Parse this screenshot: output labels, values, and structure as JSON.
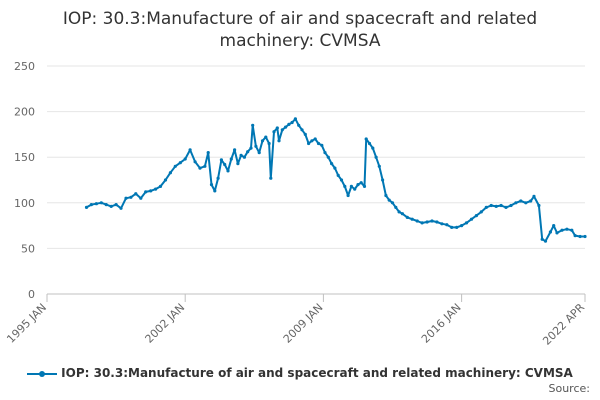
{
  "title_lines": [
    "IOP: 30.3:Manufacture of air and spacecraft and related",
    "machinery: CVMSA"
  ],
  "source_label": "Source:",
  "colors": {
    "series": "#0077b4",
    "grid": "#e6e6e6",
    "axis_text": "#666666"
  },
  "chart_data": {
    "type": "line",
    "title": "IOP: 30.3:Manufacture of air and spacecraft and related machinery: CVMSA",
    "xlabel": "",
    "ylabel": "",
    "x_range": [
      "1995-01",
      "2022-04"
    ],
    "ylim": [
      0,
      250
    ],
    "y_ticks": [
      0,
      50,
      100,
      150,
      200,
      250
    ],
    "x_ticks": [
      {
        "label": "1995 JAN",
        "date": "1995-01"
      },
      {
        "label": "2002 JAN",
        "date": "2002-01"
      },
      {
        "label": "2009 JAN",
        "date": "2009-01"
      },
      {
        "label": "2016 JAN",
        "date": "2016-01"
      },
      {
        "label": "2022 APR",
        "date": "2022-04"
      }
    ],
    "grid": true,
    "legend_position": "bottom",
    "series": [
      {
        "name": "IOP: 30.3:Manufacture of air and spacecraft and related machinery: CVMSA",
        "points": [
          [
            "1997-01",
            95
          ],
          [
            "1997-04",
            98
          ],
          [
            "1997-07",
            99
          ],
          [
            "1997-10",
            100
          ],
          [
            "1998-01",
            98
          ],
          [
            "1998-04",
            96
          ],
          [
            "1998-07",
            98
          ],
          [
            "1998-10",
            94
          ],
          [
            "1999-01",
            105
          ],
          [
            "1999-04",
            106
          ],
          [
            "1999-07",
            110
          ],
          [
            "1999-10",
            105
          ],
          [
            "2000-01",
            112
          ],
          [
            "2000-04",
            113
          ],
          [
            "2000-07",
            115
          ],
          [
            "2000-10",
            118
          ],
          [
            "2001-01",
            125
          ],
          [
            "2001-04",
            133
          ],
          [
            "2001-07",
            140
          ],
          [
            "2001-10",
            144
          ],
          [
            "2002-01",
            148
          ],
          [
            "2002-04",
            158
          ],
          [
            "2002-07",
            145
          ],
          [
            "2002-10",
            138
          ],
          [
            "2003-01",
            140
          ],
          [
            "2003-03",
            155
          ],
          [
            "2003-05",
            120
          ],
          [
            "2003-07",
            113
          ],
          [
            "2003-09",
            127
          ],
          [
            "2003-11",
            147
          ],
          [
            "2004-01",
            142
          ],
          [
            "2004-03",
            135
          ],
          [
            "2004-05",
            148
          ],
          [
            "2004-07",
            158
          ],
          [
            "2004-09",
            143
          ],
          [
            "2004-11",
            152
          ],
          [
            "2005-01",
            150
          ],
          [
            "2005-03",
            156
          ],
          [
            "2005-05",
            160
          ],
          [
            "2005-06",
            185
          ],
          [
            "2005-08",
            162
          ],
          [
            "2005-10",
            155
          ],
          [
            "2005-12",
            168
          ],
          [
            "2006-02",
            172
          ],
          [
            "2006-04",
            165
          ],
          [
            "2006-05",
            127
          ],
          [
            "2006-07",
            178
          ],
          [
            "2006-09",
            182
          ],
          [
            "2006-10",
            168
          ],
          [
            "2006-12",
            180
          ],
          [
            "2007-02",
            183
          ],
          [
            "2007-04",
            186
          ],
          [
            "2007-06",
            188
          ],
          [
            "2007-08",
            192
          ],
          [
            "2007-10",
            185
          ],
          [
            "2007-12",
            180
          ],
          [
            "2008-02",
            175
          ],
          [
            "2008-04",
            165
          ],
          [
            "2008-06",
            168
          ],
          [
            "2008-08",
            170
          ],
          [
            "2008-10",
            165
          ],
          [
            "2008-12",
            163
          ],
          [
            "2009-02",
            155
          ],
          [
            "2009-04",
            150
          ],
          [
            "2009-06",
            143
          ],
          [
            "2009-08",
            138
          ],
          [
            "2009-10",
            130
          ],
          [
            "2009-12",
            125
          ],
          [
            "2010-02",
            118
          ],
          [
            "2010-04",
            108
          ],
          [
            "2010-06",
            118
          ],
          [
            "2010-08",
            115
          ],
          [
            "2010-10",
            120
          ],
          [
            "2010-12",
            122
          ],
          [
            "2011-02",
            118
          ],
          [
            "2011-03",
            170
          ],
          [
            "2011-05",
            165
          ],
          [
            "2011-07",
            160
          ],
          [
            "2011-09",
            150
          ],
          [
            "2011-11",
            140
          ],
          [
            "2012-01",
            125
          ],
          [
            "2012-03",
            108
          ],
          [
            "2012-05",
            103
          ],
          [
            "2012-07",
            100
          ],
          [
            "2012-09",
            95
          ],
          [
            "2012-11",
            90
          ],
          [
            "2013-01",
            88
          ],
          [
            "2013-04",
            84
          ],
          [
            "2013-07",
            82
          ],
          [
            "2013-10",
            80
          ],
          [
            "2014-01",
            78
          ],
          [
            "2014-04",
            79
          ],
          [
            "2014-07",
            80
          ],
          [
            "2014-10",
            79
          ],
          [
            "2015-01",
            77
          ],
          [
            "2015-04",
            76
          ],
          [
            "2015-07",
            73
          ],
          [
            "2015-10",
            73
          ],
          [
            "2016-01",
            75
          ],
          [
            "2016-04",
            78
          ],
          [
            "2016-07",
            82
          ],
          [
            "2016-10",
            86
          ],
          [
            "2017-01",
            90
          ],
          [
            "2017-04",
            95
          ],
          [
            "2017-07",
            97
          ],
          [
            "2017-10",
            96
          ],
          [
            "2018-01",
            97
          ],
          [
            "2018-04",
            95
          ],
          [
            "2018-07",
            97
          ],
          [
            "2018-10",
            100
          ],
          [
            "2019-01",
            102
          ],
          [
            "2019-04",
            100
          ],
          [
            "2019-07",
            102
          ],
          [
            "2019-09",
            107
          ],
          [
            "2019-12",
            97
          ],
          [
            "2020-02",
            60
          ],
          [
            "2020-04",
            58
          ],
          [
            "2020-07",
            68
          ],
          [
            "2020-09",
            75
          ],
          [
            "2020-11",
            67
          ],
          [
            "2021-02",
            70
          ],
          [
            "2021-05",
            71
          ],
          [
            "2021-08",
            70
          ],
          [
            "2021-10",
            64
          ],
          [
            "2022-01",
            63
          ],
          [
            "2022-04",
            63
          ]
        ]
      }
    ]
  }
}
